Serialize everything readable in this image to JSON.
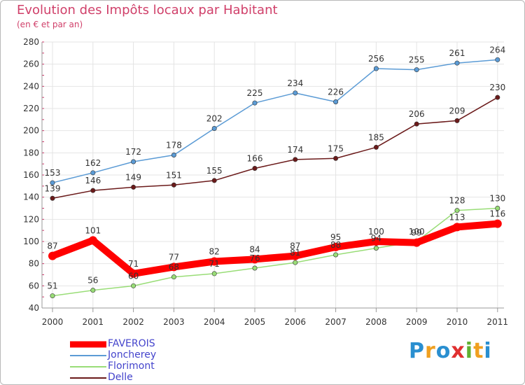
{
  "header": {
    "title": "Evolution des Impôts locaux par Habitant",
    "subtitle": "(en € et par an)"
  },
  "logo": {
    "text": "Proxiti",
    "colors": [
      "#2a8fd0",
      "#f0a020",
      "#2a8fd0",
      "#e03030",
      "#60b030",
      "#f0a020",
      "#2a8fd0"
    ]
  },
  "chart_data": {
    "type": "line",
    "title": "Evolution des Impôts locaux par Habitant",
    "subtitle": "(en € et par an)",
    "xlabel": "",
    "ylabel": "",
    "categories": [
      "2000",
      "2001",
      "2002",
      "2003",
      "2004",
      "2005",
      "2006",
      "2007",
      "2008",
      "2009",
      "2010",
      "2011"
    ],
    "ylim": [
      40,
      280
    ],
    "yticks": [
      40,
      60,
      80,
      100,
      120,
      140,
      160,
      180,
      200,
      220,
      240,
      260,
      280
    ],
    "grid": true,
    "legend_position": "bottom-left",
    "series": [
      {
        "name": "Joncherey",
        "color": "#5b9bd5",
        "values": [
          153,
          162,
          172,
          178,
          202,
          225,
          234,
          226,
          256,
          255,
          261,
          264
        ]
      },
      {
        "name": "Delle",
        "color": "#6b1a1a",
        "values": [
          139,
          146,
          149,
          151,
          155,
          166,
          174,
          175,
          185,
          206,
          209,
          230
        ]
      },
      {
        "name": "Florimont",
        "color": "#99dd77",
        "values": [
          51,
          56,
          60,
          68,
          71,
          76,
          81,
          88,
          94,
          100,
          128,
          130
        ]
      },
      {
        "name": "FAVEROIS",
        "color": "#ff0000",
        "values": [
          87,
          101,
          71,
          77,
          82,
          84,
          87,
          95,
          100,
          99,
          113,
          116
        ]
      }
    ]
  }
}
